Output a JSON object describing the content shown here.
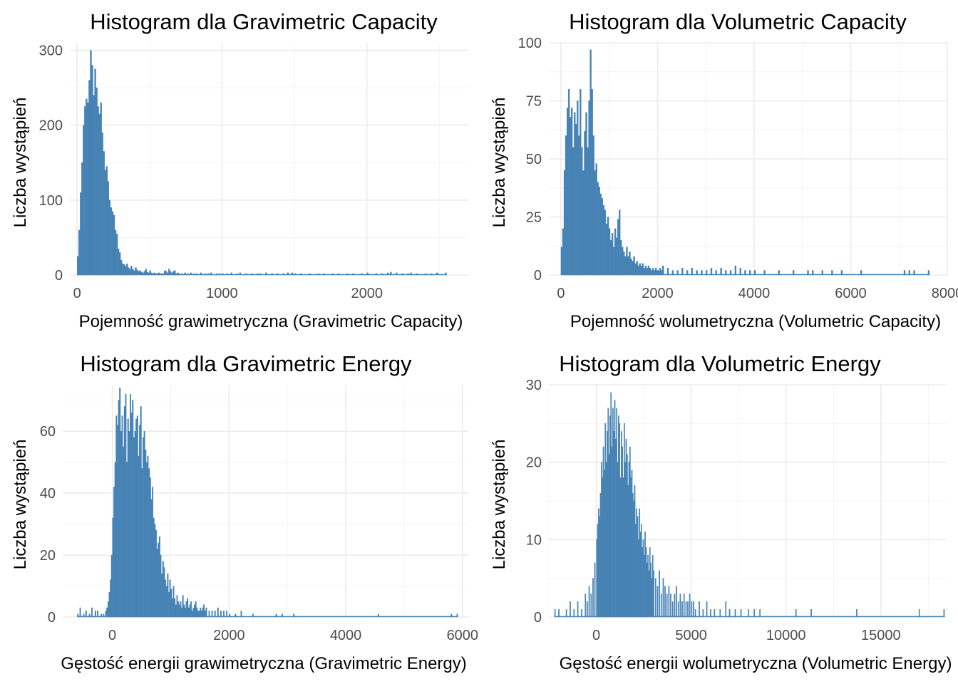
{
  "chart_data": [
    {
      "type": "bar",
      "title": "Histogram dla Gravimetric Capacity",
      "xlabel": "Pojemność grawimetryczna (Gravimetric Capacity)",
      "ylabel": "Liczba wystąpień",
      "xlim": [
        -50,
        2700
      ],
      "ylim": [
        0,
        310
      ],
      "xticks": [
        0,
        1000,
        2000
      ],
      "yticks": [
        0,
        100,
        200,
        300
      ],
      "grid": true,
      "legend": "none",
      "color": "#4682b4",
      "bin_width": 10,
      "x": [
        0,
        10,
        20,
        30,
        40,
        50,
        60,
        70,
        80,
        90,
        100,
        110,
        120,
        130,
        140,
        150,
        160,
        170,
        180,
        190,
        200,
        210,
        220,
        230,
        240,
        250,
        260,
        270,
        280,
        290,
        300,
        310,
        320,
        330,
        340,
        350,
        360,
        370,
        380,
        390,
        400,
        410,
        420,
        430,
        440,
        450,
        460,
        470,
        480,
        490,
        500,
        510,
        520,
        530,
        540,
        550,
        560,
        570,
        580,
        590,
        600,
        610,
        620,
        630,
        640,
        650,
        660,
        670,
        680,
        690,
        700,
        720,
        740,
        760,
        780,
        800,
        820,
        850,
        880,
        900,
        920,
        960,
        980,
        1000,
        1030,
        1060,
        1100,
        1120,
        1160,
        1200,
        1240,
        1260,
        1300,
        1340,
        1380,
        1420,
        1450,
        1480,
        1500,
        1540,
        1600,
        1660,
        1700,
        1760,
        1800,
        1860,
        1900,
        1960,
        2000,
        2060,
        2100,
        2140,
        2160,
        2200,
        2240,
        2280,
        2300,
        2340,
        2400,
        2440,
        2480,
        2540
      ],
      "y": [
        25,
        60,
        110,
        150,
        200,
        225,
        235,
        230,
        260,
        300,
        280,
        240,
        275,
        250,
        225,
        215,
        230,
        190,
        165,
        140,
        145,
        125,
        100,
        90,
        85,
        80,
        60,
        55,
        35,
        30,
        20,
        15,
        14,
        12,
        15,
        10,
        8,
        12,
        8,
        6,
        10,
        7,
        5,
        6,
        4,
        3,
        5,
        8,
        4,
        3,
        6,
        3,
        2,
        3,
        2,
        2,
        3,
        2,
        2,
        2,
        6,
        5,
        3,
        8,
        5,
        3,
        5,
        6,
        2,
        3,
        2,
        2,
        3,
        2,
        3,
        2,
        2,
        3,
        2,
        2,
        3,
        2,
        2,
        2,
        2,
        3,
        2,
        3,
        2,
        2,
        2,
        2,
        3,
        2,
        2,
        2,
        3,
        3,
        2,
        2,
        2,
        2,
        2,
        2,
        2,
        2,
        2,
        2,
        3,
        2,
        2,
        3,
        4,
        3,
        2,
        2,
        3,
        2,
        2,
        2,
        3,
        3
      ]
    },
    {
      "type": "bar",
      "title": "Histogram dla Volumetric Capacity",
      "xlabel": "Pojemność wolumetryczna (Volumetric Capacity)",
      "ylabel": "Liczba wystąpień",
      "xlim": [
        -250,
        8000
      ],
      "ylim": [
        0,
        100
      ],
      "xticks": [
        0,
        2000,
        4000,
        6000,
        8000
      ],
      "yticks": [
        0,
        25,
        50,
        75,
        100
      ],
      "grid": true,
      "legend": "none",
      "color": "#4682b4",
      "bin_width": 30,
      "x": [
        0,
        30,
        60,
        90,
        120,
        150,
        180,
        210,
        240,
        270,
        300,
        330,
        360,
        390,
        420,
        450,
        480,
        510,
        540,
        570,
        600,
        630,
        660,
        690,
        720,
        750,
        780,
        810,
        840,
        870,
        900,
        930,
        960,
        990,
        1020,
        1050,
        1080,
        1110,
        1140,
        1170,
        1200,
        1230,
        1260,
        1290,
        1320,
        1350,
        1380,
        1410,
        1440,
        1470,
        1500,
        1530,
        1560,
        1590,
        1620,
        1650,
        1680,
        1710,
        1740,
        1770,
        1800,
        1830,
        1860,
        1890,
        1920,
        1950,
        1980,
        2010,
        2040,
        2070,
        2100,
        2200,
        2300,
        2400,
        2500,
        2600,
        2700,
        2800,
        2900,
        3000,
        3100,
        3200,
        3300,
        3400,
        3500,
        3600,
        3700,
        3800,
        3900,
        4000,
        4200,
        4500,
        4800,
        5100,
        5200,
        5400,
        5600,
        5800,
        6200,
        7100,
        7200,
        7300,
        7600
      ],
      "y": [
        12,
        20,
        45,
        60,
        72,
        80,
        68,
        72,
        55,
        70,
        65,
        75,
        60,
        80,
        55,
        45,
        62,
        70,
        55,
        75,
        97,
        80,
        60,
        45,
        48,
        40,
        38,
        35,
        33,
        30,
        28,
        22,
        25,
        20,
        15,
        18,
        12,
        20,
        16,
        24,
        28,
        15,
        12,
        10,
        8,
        12,
        8,
        10,
        7,
        6,
        8,
        5,
        6,
        4,
        5,
        4,
        5,
        3,
        4,
        3,
        4,
        3,
        2,
        3,
        2,
        3,
        2,
        2,
        3,
        2,
        4,
        3,
        2,
        2,
        3,
        2,
        3,
        2,
        2,
        2,
        3,
        2,
        3,
        2,
        2,
        4,
        3,
        2,
        2,
        2,
        2,
        2,
        2,
        2,
        2,
        2,
        2,
        2,
        2,
        2,
        2,
        2,
        2
      ]
    },
    {
      "type": "bar",
      "title": "Histogram dla Gravimetric Energy",
      "xlabel": "Gęstość energii grawimetryczna (Gravimetric Energy)",
      "ylabel": "Liczba wystąpień",
      "xlim": [
        -850,
        6100
      ],
      "ylim": [
        0,
        75
      ],
      "xticks": [
        0,
        2000,
        4000,
        6000
      ],
      "yticks": [
        0,
        20,
        40,
        60
      ],
      "grid": true,
      "legend": "none",
      "color": "#4682b4",
      "bin_width": 20,
      "x": [
        -600,
        -560,
        -500,
        -460,
        -400,
        -360,
        -300,
        -260,
        -200,
        -160,
        -120,
        -100,
        -80,
        -60,
        -40,
        -20,
        0,
        20,
        40,
        60,
        80,
        100,
        120,
        140,
        160,
        180,
        200,
        220,
        240,
        260,
        280,
        300,
        320,
        340,
        360,
        380,
        400,
        420,
        440,
        460,
        480,
        500,
        520,
        540,
        560,
        580,
        600,
        620,
        640,
        660,
        680,
        700,
        720,
        740,
        760,
        780,
        800,
        820,
        840,
        860,
        880,
        900,
        920,
        940,
        960,
        980,
        1000,
        1020,
        1040,
        1060,
        1080,
        1100,
        1120,
        1140,
        1160,
        1180,
        1200,
        1220,
        1240,
        1260,
        1280,
        1300,
        1320,
        1340,
        1360,
        1380,
        1400,
        1420,
        1440,
        1460,
        1480,
        1500,
        1520,
        1540,
        1560,
        1580,
        1600,
        1650,
        1700,
        1750,
        1800,
        1850,
        1900,
        1950,
        2000,
        2100,
        2200,
        2400,
        2800,
        2900,
        3100,
        4550,
        5800,
        5900
      ],
      "y": [
        1,
        3,
        1,
        2,
        1,
        3,
        2,
        2,
        1,
        1,
        2,
        3,
        5,
        8,
        12,
        20,
        32,
        42,
        50,
        65,
        62,
        70,
        74,
        60,
        65,
        55,
        68,
        72,
        50,
        64,
        60,
        72,
        66,
        70,
        58,
        60,
        64,
        65,
        52,
        62,
        68,
        48,
        58,
        60,
        54,
        50,
        52,
        48,
        45,
        38,
        42,
        32,
        30,
        28,
        22,
        24,
        26,
        20,
        14,
        18,
        16,
        12,
        10,
        14,
        8,
        12,
        9,
        6,
        10,
        6,
        4,
        7,
        5,
        4,
        5,
        3,
        7,
        4,
        3,
        5,
        6,
        3,
        4,
        5,
        2,
        3,
        4,
        5,
        3,
        2,
        2,
        3,
        2,
        3,
        4,
        2,
        3,
        2,
        2,
        2,
        3,
        2,
        2,
        2,
        1,
        1,
        2,
        1,
        1,
        1,
        1,
        1,
        1,
        1
      ]
    },
    {
      "type": "bar",
      "title": "Histogram dla Volumetric Energy",
      "xlabel": "Gęstość energii wolumetryczna (Volumetric Energy)",
      "ylabel": "Liczba wystąpień",
      "xlim": [
        -2500,
        18500
      ],
      "ylim": [
        0,
        30
      ],
      "xticks": [
        0,
        5000,
        10000,
        15000
      ],
      "yticks": [
        0,
        10,
        20,
        30
      ],
      "grid": true,
      "legend": "none",
      "color": "#4682b4",
      "bin_width": 50,
      "x": [
        -2200,
        -2000,
        -1600,
        -1400,
        -1200,
        -1000,
        -800,
        -600,
        -500,
        -400,
        -300,
        -200,
        -100,
        0,
        50,
        100,
        150,
        200,
        250,
        300,
        350,
        400,
        450,
        500,
        550,
        600,
        650,
        700,
        750,
        800,
        850,
        900,
        950,
        1000,
        1050,
        1100,
        1150,
        1200,
        1250,
        1300,
        1350,
        1400,
        1450,
        1500,
        1550,
        1600,
        1650,
        1700,
        1750,
        1800,
        1850,
        1900,
        1950,
        2000,
        2050,
        2100,
        2150,
        2200,
        2250,
        2300,
        2350,
        2400,
        2450,
        2500,
        2550,
        2600,
        2650,
        2700,
        2750,
        2800,
        2850,
        2900,
        2950,
        3000,
        3100,
        3200,
        3300,
        3400,
        3500,
        3600,
        3700,
        3800,
        3900,
        4000,
        4100,
        4200,
        4300,
        4400,
        4500,
        4600,
        4700,
        4800,
        4900,
        5000,
        5100,
        5200,
        5400,
        5600,
        5800,
        6000,
        6200,
        6500,
        6800,
        7000,
        7300,
        7600,
        8000,
        8300,
        8600,
        10500,
        11300,
        13700,
        17000,
        18300
      ],
      "y": [
        1,
        1,
        1,
        2,
        1,
        2,
        1,
        3,
        2,
        4,
        3,
        5,
        7,
        10,
        12,
        14,
        13,
        16,
        20,
        18,
        22,
        19,
        25,
        20,
        24,
        27,
        21,
        26,
        29,
        22,
        27,
        24,
        28,
        23,
        27,
        20,
        26,
        25,
        18,
        24,
        22,
        18,
        25,
        20,
        23,
        21,
        17,
        20,
        22,
        18,
        19,
        16,
        15,
        17,
        12,
        14,
        13,
        10,
        14,
        11,
        12,
        9,
        10,
        8,
        11,
        9,
        7,
        8,
        6,
        9,
        7,
        5,
        8,
        6,
        5,
        4,
        6,
        3,
        5,
        4,
        3,
        4,
        3,
        2,
        3,
        4,
        2,
        3,
        2,
        3,
        2,
        2,
        3,
        2,
        2,
        1,
        2,
        1,
        2,
        1,
        1,
        1,
        2,
        1,
        1,
        1,
        1,
        1,
        1,
        1,
        1,
        1,
        1,
        1
      ]
    }
  ]
}
